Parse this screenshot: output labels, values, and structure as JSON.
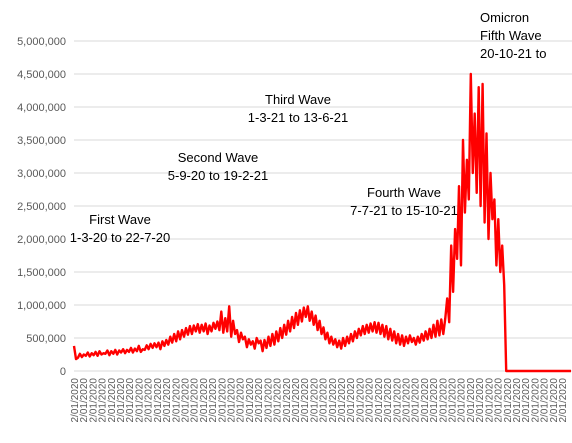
{
  "chart_data": {
    "type": "line",
    "title": "",
    "xlabel": "",
    "ylabel": "",
    "ylim": [
      0,
      5000000
    ],
    "y_ticks": [
      {
        "value": 0,
        "label": "0"
      },
      {
        "value": 500000,
        "label": "500,000"
      },
      {
        "value": 1000000,
        "label": "1,000,000"
      },
      {
        "value": 1500000,
        "label": "1,500,000"
      },
      {
        "value": 2000000,
        "label": "2,000,000"
      },
      {
        "value": 2500000,
        "label": "2,500,000"
      },
      {
        "value": 3000000,
        "label": "3,000,000"
      },
      {
        "value": 3500000,
        "label": "3,500,000"
      },
      {
        "value": 4000000,
        "label": "4,000,000"
      },
      {
        "value": 4500000,
        "label": "4,500,000"
      },
      {
        "value": 5000000,
        "label": "5,000,000"
      }
    ],
    "x_tick_labels": [
      "2/01/2020"
    ],
    "grid": true,
    "colors": {
      "line": "#ff0000",
      "grid": "#d9d9d9",
      "tick_text": "#595959",
      "annotation_text": "#000000"
    },
    "annotations": [
      {
        "lines": [
          "First Wave",
          "1-3-20 to 22-7-20"
        ]
      },
      {
        "lines": [
          "Second Wave",
          "5-9-20 to 19-2-21"
        ]
      },
      {
        "lines": [
          "Third Wave",
          "1-3-21 to 13-6-21"
        ]
      },
      {
        "lines": [
          "Fourth Wave",
          "7-7-21 to 15-10-21"
        ]
      },
      {
        "lines": [
          "Omicron",
          "Fifth Wave",
          "20-10-21 to"
        ]
      }
    ],
    "series": [
      {
        "values": [
          380000,
          180000,
          200000,
          260000,
          210000,
          250000,
          230000,
          280000,
          220000,
          270000,
          240000,
          290000,
          230000,
          300000,
          250000,
          270000,
          260000,
          310000,
          240000,
          300000,
          260000,
          320000,
          250000,
          310000,
          280000,
          330000,
          270000,
          320000,
          290000,
          350000,
          280000,
          340000,
          300000,
          380000,
          290000,
          330000,
          320000,
          390000,
          330000,
          410000,
          350000,
          420000,
          360000,
          430000,
          330000,
          450000,
          380000,
          470000,
          400000,
          520000,
          430000,
          560000,
          450000,
          600000,
          480000,
          620000,
          520000,
          650000,
          550000,
          680000,
          560000,
          690000,
          600000,
          710000,
          580000,
          700000,
          600000,
          720000,
          560000,
          690000,
          600000,
          730000,
          640000,
          750000,
          620000,
          900000,
          580000,
          800000,
          600000,
          980000,
          520000,
          760000,
          560000,
          620000,
          440000,
          580000,
          480000,
          520000,
          360000,
          480000,
          400000,
          450000,
          340000,
          500000,
          420000,
          460000,
          300000,
          470000,
          350000,
          520000,
          380000,
          560000,
          400000,
          600000,
          450000,
          650000,
          500000,
          700000,
          550000,
          760000,
          600000,
          820000,
          650000,
          880000,
          700000,
          920000,
          750000,
          960000,
          820000,
          980000,
          760000,
          900000,
          700000,
          840000,
          620000,
          760000,
          560000,
          660000,
          480000,
          580000,
          420000,
          520000,
          400000,
          480000,
          360000,
          460000,
          340000,
          500000,
          380000,
          520000,
          420000,
          560000,
          450000,
          600000,
          500000,
          640000,
          540000,
          680000,
          560000,
          700000,
          580000,
          720000,
          600000,
          740000,
          580000,
          730000,
          560000,
          700000,
          520000,
          680000,
          480000,
          640000,
          460000,
          600000,
          420000,
          560000,
          400000,
          540000,
          380000,
          520000,
          420000,
          540000,
          440000,
          500000,
          400000,
          520000,
          430000,
          560000,
          460000,
          600000,
          480000,
          640000,
          500000,
          700000,
          520000,
          760000,
          540000,
          780000,
          560000,
          800000,
          1100000,
          740000,
          1900000,
          1200000,
          2150000,
          1700000,
          2800000,
          1600000,
          3500000,
          2400000,
          3200000,
          2600000,
          4500000,
          3000000,
          3900000,
          2700000,
          4300000,
          2500000,
          4350000,
          2250000,
          3600000,
          2000000,
          3000000,
          2300000,
          2600000,
          1600000,
          2300000,
          1500000,
          1900000,
          1300000,
          0,
          0,
          0,
          0,
          0,
          0,
          0,
          0,
          0,
          0,
          0,
          0,
          0,
          0,
          0,
          0,
          0,
          0,
          0,
          0,
          0,
          0,
          0,
          0,
          0,
          0,
          0,
          0,
          0,
          0,
          0,
          0,
          0,
          0
        ]
      }
    ]
  }
}
